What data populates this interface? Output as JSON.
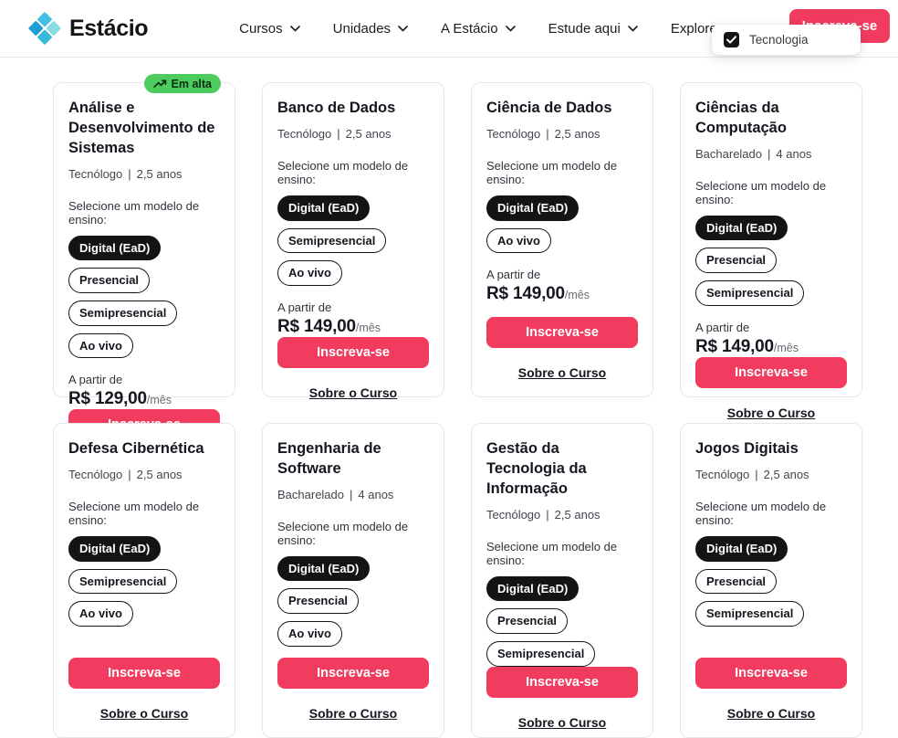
{
  "brand": {
    "name": "Estácio"
  },
  "nav": {
    "items": [
      {
        "label": "Cursos"
      },
      {
        "label": "Unidades"
      },
      {
        "label": "A Estácio"
      },
      {
        "label": "Estude aqui"
      },
      {
        "label": "Explore"
      }
    ],
    "cta_label": "Inscreva-se"
  },
  "filter_popover": {
    "label": "Tecnologia",
    "checked": true
  },
  "labels": {
    "badge_trending": "Em alta",
    "select_model": "Selecione um modelo de ensino:",
    "price_from": "A partir de",
    "per_month": "/mês",
    "enroll": "Inscreva-se",
    "about": "Sobre o Curso",
    "subtitle_divider": "|"
  },
  "colors": {
    "accent_pink": "#f23c5f",
    "badge_green": "#4ccc5d",
    "pill_black": "#141414"
  },
  "courses": [
    {
      "title": "Análise e Desenvolvimento de Sistemas",
      "trending": true,
      "degree": "Tecnólogo",
      "duration": "2,5 anos",
      "models": [
        {
          "label": "Digital (EaD)",
          "selected": true
        },
        {
          "label": "Presencial",
          "selected": false
        },
        {
          "label": "Semipresencial",
          "selected": false
        },
        {
          "label": "Ao vivo",
          "selected": false
        }
      ],
      "price": "R$ 129,00"
    },
    {
      "title": "Banco de Dados",
      "trending": false,
      "degree": "Tecnólogo",
      "duration": "2,5 anos",
      "models": [
        {
          "label": "Digital (EaD)",
          "selected": true
        },
        {
          "label": "Semipresencial",
          "selected": false
        },
        {
          "label": "Ao vivo",
          "selected": false
        }
      ],
      "price": "R$ 149,00"
    },
    {
      "title": "Ciência de Dados",
      "trending": false,
      "degree": "Tecnólogo",
      "duration": "2,5 anos",
      "models": [
        {
          "label": "Digital (EaD)",
          "selected": true
        },
        {
          "label": "Ao vivo",
          "selected": false
        }
      ],
      "price": "R$ 149,00"
    },
    {
      "title": "Ciências da Computação",
      "trending": false,
      "degree": "Bacharelado",
      "duration": "4 anos",
      "models": [
        {
          "label": "Digital (EaD)",
          "selected": true
        },
        {
          "label": "Presencial",
          "selected": false
        },
        {
          "label": "Semipresencial",
          "selected": false
        }
      ],
      "price": "R$ 149,00"
    },
    {
      "title": "Defesa Cibernética",
      "trending": false,
      "degree": "Tecnólogo",
      "duration": "2,5 anos",
      "models": [
        {
          "label": "Digital (EaD)",
          "selected": true
        },
        {
          "label": "Semipresencial",
          "selected": false
        },
        {
          "label": "Ao vivo",
          "selected": false
        }
      ],
      "price": null
    },
    {
      "title": "Engenharia de Software",
      "trending": false,
      "degree": "Bacharelado",
      "duration": "4 anos",
      "models": [
        {
          "label": "Digital (EaD)",
          "selected": true
        },
        {
          "label": "Presencial",
          "selected": false
        },
        {
          "label": "Ao vivo",
          "selected": false
        }
      ],
      "price": null
    },
    {
      "title": "Gestão da Tecnologia da Informação",
      "trending": false,
      "degree": "Tecnólogo",
      "duration": "2,5 anos",
      "models": [
        {
          "label": "Digital (EaD)",
          "selected": true
        },
        {
          "label": "Presencial",
          "selected": false
        },
        {
          "label": "Semipresencial",
          "selected": false
        }
      ],
      "price": null
    },
    {
      "title": "Jogos Digitais",
      "trending": false,
      "degree": "Tecnólogo",
      "duration": "2,5 anos",
      "models": [
        {
          "label": "Digital (EaD)",
          "selected": true
        },
        {
          "label": "Presencial",
          "selected": false
        },
        {
          "label": "Semipresencial",
          "selected": false
        }
      ],
      "price": null
    }
  ]
}
